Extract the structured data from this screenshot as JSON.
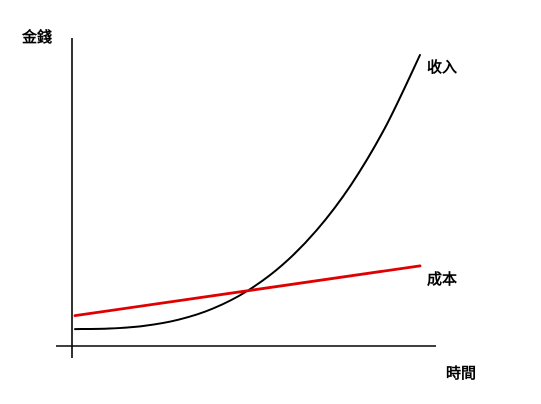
{
  "chart_data": {
    "type": "line",
    "title": "",
    "xlabel": "時間",
    "ylabel": "金錢",
    "grid": false,
    "series": [
      {
        "name": "收入",
        "color": "#000000",
        "x": [
          0,
          10,
          20,
          30,
          40,
          50,
          60,
          70,
          80,
          90,
          100
        ],
        "y": [
          0,
          0.07,
          0.38,
          1.12,
          2.44,
          4.54,
          7.57,
          11.71,
          17.1,
          23.98,
          32.5
        ]
      },
      {
        "name": "成本",
        "color": "#e00000",
        "x": [
          0,
          100
        ],
        "y": [
          1.6,
          7.5
        ]
      }
    ],
    "xlim": [
      0,
      100
    ],
    "ylim": [
      -2,
      32.5
    ]
  }
}
